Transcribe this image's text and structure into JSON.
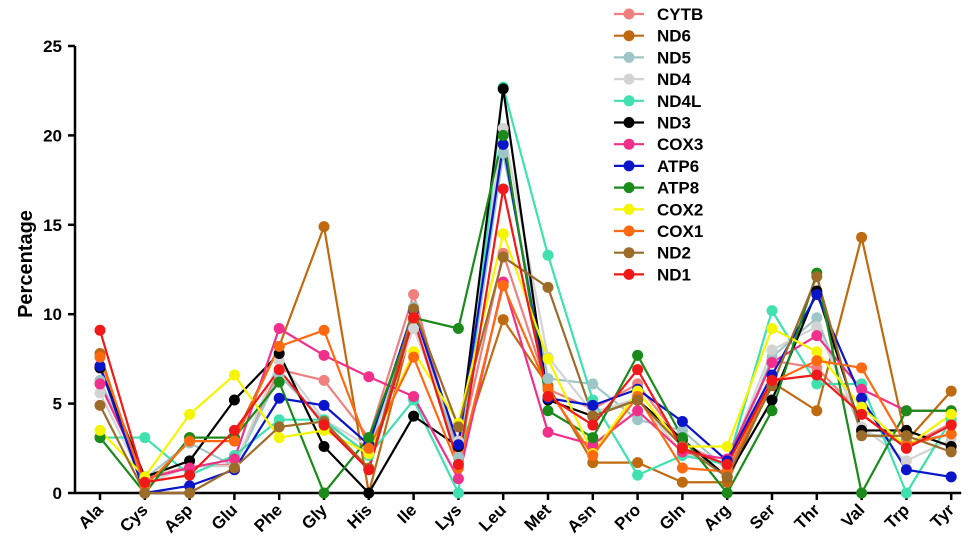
{
  "chart_data": {
    "type": "line",
    "title": "",
    "xlabel": "",
    "ylabel": "Percentage",
    "ylim": [
      0,
      25
    ],
    "yticks": [
      0,
      5,
      10,
      15,
      20,
      25
    ],
    "categories": [
      "Ala",
      "Cys",
      "Asp",
      "Glu",
      "Phe",
      "Gly",
      "His",
      "Ile",
      "Lys",
      "Leu",
      "Met",
      "Asn",
      "Pro",
      "Gln",
      "Arg",
      "Ser",
      "Thr",
      "Val",
      "Trp",
      "Tyr"
    ],
    "legend_position": "top-right",
    "grid": false,
    "series": [
      {
        "name": "CYTB",
        "color": "#F08080",
        "values": [
          7.1,
          0.8,
          1.5,
          1.6,
          6.9,
          6.3,
          3.1,
          11.1,
          2.1,
          13.4,
          5.8,
          4.7,
          6.1,
          2.8,
          1.5,
          7.4,
          7.0,
          4.4,
          2.6,
          3.9
        ]
      },
      {
        "name": "ND6",
        "color": "#C06A10",
        "values": [
          7.8,
          0.0,
          3.1,
          3.1,
          8.2,
          14.9,
          0.0,
          9.7,
          2.0,
          9.7,
          6.0,
          1.7,
          1.7,
          0.6,
          0.6,
          6.2,
          4.6,
          14.3,
          2.9,
          5.7
        ]
      },
      {
        "name": "ND5",
        "color": "#9EC6C8",
        "values": [
          6.3,
          0.8,
          2.8,
          1.5,
          6.6,
          4.0,
          2.2,
          10.4,
          2.0,
          19.0,
          6.4,
          6.1,
          4.1,
          3.5,
          1.3,
          7.6,
          9.8,
          3.4,
          2.8,
          3.3
        ]
      },
      {
        "name": "ND4",
        "color": "#D3D3D3",
        "values": [
          5.6,
          0.5,
          1.5,
          1.5,
          7.4,
          4.1,
          2.6,
          9.2,
          2.9,
          20.4,
          7.6,
          4.5,
          5.3,
          2.2,
          1.7,
          8.0,
          9.3,
          3.7,
          1.8,
          3.0
        ]
      },
      {
        "name": "ND4L",
        "color": "#40E0B0",
        "values": [
          3.1,
          3.1,
          1.0,
          2.1,
          4.1,
          4.1,
          2.1,
          5.2,
          0.0,
          22.7,
          13.3,
          5.2,
          1.0,
          2.1,
          1.6,
          10.2,
          6.1,
          6.1,
          0.0,
          4.1
        ]
      },
      {
        "name": "ND3",
        "color": "#000000",
        "values": [
          7.0,
          0.9,
          1.8,
          5.2,
          7.8,
          2.6,
          0.0,
          4.3,
          2.6,
          22.6,
          5.2,
          4.3,
          5.2,
          3.0,
          0.9,
          5.2,
          11.3,
          3.5,
          3.5,
          2.6
        ]
      },
      {
        "name": "COX3",
        "color": "#F0308A",
        "values": [
          6.1,
          0.8,
          1.4,
          1.9,
          9.2,
          7.7,
          6.5,
          5.4,
          0.8,
          11.8,
          3.4,
          2.7,
          4.6,
          2.3,
          1.9,
          7.3,
          8.8,
          5.8,
          4.6,
          4.6
        ]
      },
      {
        "name": "ATP6",
        "color": "#0A14C8",
        "values": [
          7.1,
          0.0,
          0.4,
          1.3,
          5.3,
          4.9,
          2.7,
          10.2,
          2.7,
          19.5,
          5.3,
          4.9,
          5.8,
          4.0,
          1.8,
          6.6,
          11.1,
          5.3,
          1.3,
          0.9
        ]
      },
      {
        "name": "ATP8",
        "color": "#1A8A1A",
        "values": [
          3.1,
          0.0,
          3.1,
          3.1,
          6.2,
          0.0,
          3.1,
          9.8,
          9.2,
          20.0,
          4.6,
          3.1,
          7.7,
          3.1,
          0.0,
          4.6,
          12.3,
          0.0,
          4.6,
          4.6
        ]
      },
      {
        "name": "COX2",
        "color": "#F5F500",
        "values": [
          3.5,
          0.9,
          4.4,
          6.6,
          3.1,
          3.5,
          2.2,
          7.9,
          3.9,
          14.5,
          7.5,
          2.2,
          5.7,
          2.6,
          2.6,
          9.2,
          7.9,
          4.8,
          2.6,
          4.4
        ]
      },
      {
        "name": "COX1",
        "color": "#FF6A10",
        "values": [
          7.6,
          0.4,
          2.9,
          2.9,
          8.2,
          9.1,
          2.5,
          7.6,
          1.4,
          11.6,
          5.8,
          2.1,
          5.4,
          1.4,
          1.2,
          6.2,
          7.4,
          7.0,
          2.7,
          3.3
        ]
      },
      {
        "name": "ND2",
        "color": "#9C6C28",
        "values": [
          4.9,
          0.0,
          0.0,
          1.4,
          3.7,
          4.0,
          1.4,
          10.3,
          3.7,
          13.2,
          11.5,
          4.3,
          5.2,
          2.6,
          0.9,
          6.0,
          12.1,
          3.2,
          3.2,
          2.3
        ]
      },
      {
        "name": "ND1",
        "color": "#F01818",
        "values": [
          9.1,
          0.6,
          1.0,
          3.5,
          6.9,
          3.8,
          1.3,
          9.8,
          1.6,
          17.0,
          5.4,
          3.8,
          6.9,
          2.5,
          1.6,
          6.3,
          6.6,
          4.4,
          2.5,
          3.8
        ]
      }
    ]
  }
}
